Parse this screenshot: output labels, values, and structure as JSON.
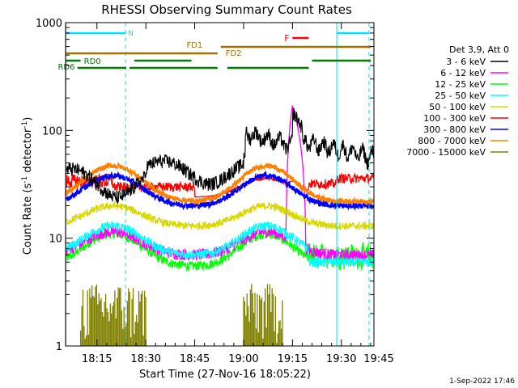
{
  "chart_data": {
    "type": "line",
    "title": "RHESSI Observing Summary Count Rates",
    "xlabel": "Start Time (27-Nov-16 18:05:22)",
    "ylabel_main": "Count Rate (s",
    "ylabel_sup1": "-1",
    "ylabel_mid": " detector",
    "ylabel_sup2": "-1",
    "ylabel_end": ")",
    "y_scale": "log",
    "ylim": [
      1,
      1000
    ],
    "xlim_minutes": [
      5.37,
      100
    ],
    "x_ticks": [
      {
        "label": "18:15",
        "t": 15
      },
      {
        "label": "18:30",
        "t": 30
      },
      {
        "label": "18:45",
        "t": 45
      },
      {
        "label": "19:00",
        "t": 60
      },
      {
        "label": "19:15",
        "t": 75
      },
      {
        "label": "19:30",
        "t": 90
      },
      {
        "label": "19:45",
        "t": 105
      }
    ],
    "y_ticks": [
      {
        "label": "1",
        "v": 1
      },
      {
        "label": "10",
        "v": 10
      },
      {
        "label": "100",
        "v": 100
      },
      {
        "label": "1000",
        "v": 1000
      }
    ],
    "legend_title": "Det 3,9, Att 0",
    "legend_placement": "right",
    "series": [
      {
        "name": "3 - 6 keV",
        "color": "#000000"
      },
      {
        "name": "6 - 12 keV",
        "color": "#ff00ff"
      },
      {
        "name": "12 - 25 keV",
        "color": "#00ff00"
      },
      {
        "name": "25 - 50 keV",
        "color": "#00ffff"
      },
      {
        "name": "50 - 100 keV",
        "color": "#d8d800"
      },
      {
        "name": "100 - 300 keV",
        "color": "#ff0000"
      },
      {
        "name": "300 - 800 keV",
        "color": "#0000ff"
      },
      {
        "name": "800 - 7000 keV",
        "color": "#ff8000"
      },
      {
        "name": "7000 - 15000 keV",
        "color": "#808000"
      }
    ],
    "flags": {
      "n_label": "N",
      "f_label": "F",
      "fd1_label": "FD1",
      "fd2_label": "FD2",
      "rd0_label": "RD0",
      "rd6_label": "RD6"
    },
    "footer_date": "1-Sep-2022 17:46"
  }
}
